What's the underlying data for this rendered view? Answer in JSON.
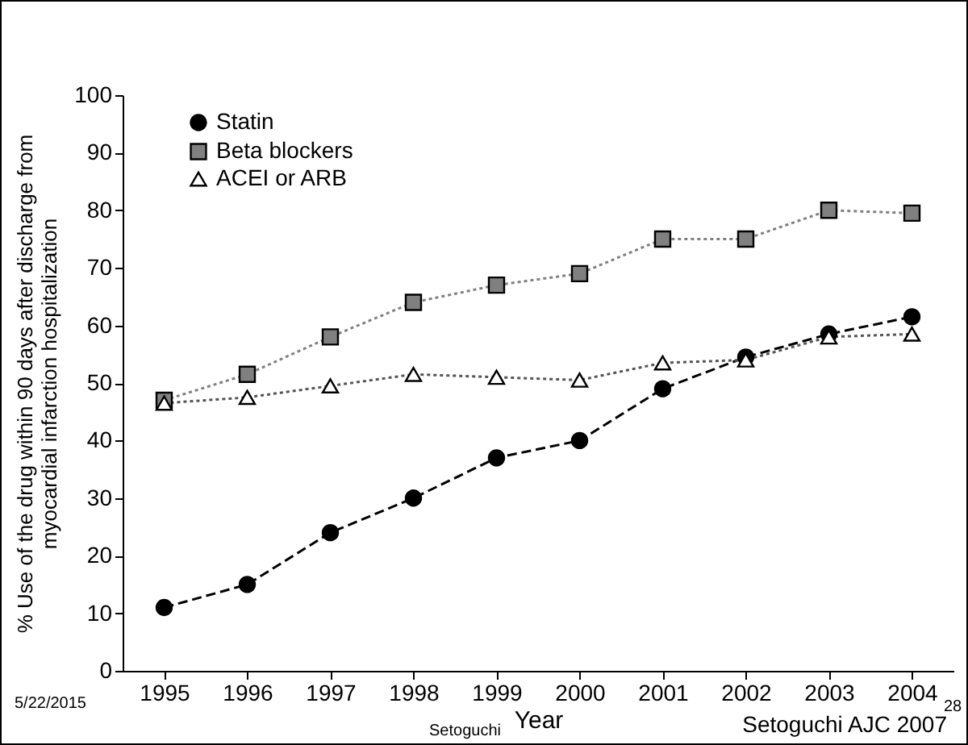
{
  "chart_data": {
    "type": "line",
    "xlabel": "Year",
    "ylabel": "% Use of the drug within 90 days after discharge from\nmyocardial infarction hospitalization",
    "categories": [
      "1995",
      "1996",
      "1997",
      "1998",
      "1999",
      "2000",
      "2001",
      "2002",
      "2003",
      "2004"
    ],
    "series": [
      {
        "name": "Statin",
        "color": "#000000",
        "marker": "circle",
        "line_style": "dashed",
        "values": [
          11,
          15,
          24,
          30,
          37,
          40,
          49,
          54.5,
          58.5,
          61.5
        ]
      },
      {
        "name": "Beta blockers",
        "color": "#808080",
        "marker": "square",
        "line_style": "dotted",
        "values": [
          47,
          51.5,
          58,
          64,
          67,
          69,
          75,
          75,
          80,
          79.5
        ]
      },
      {
        "name": "ACEI or ARB",
        "color": "#555555",
        "marker": "triangle",
        "line_style": "dotted",
        "values": [
          46.5,
          47.5,
          49.5,
          51.5,
          51,
          50.5,
          53.5,
          54,
          58,
          58.5
        ]
      }
    ],
    "ylim": [
      0,
      100
    ],
    "yticks": [
      0,
      10,
      20,
      30,
      40,
      50,
      60,
      70,
      80,
      90,
      100
    ],
    "grid": false,
    "legend": "top left",
    "annotations": [
      "5/22/2015",
      "Setoguchi",
      "28",
      "Setoguchi AJC 2007"
    ]
  }
}
